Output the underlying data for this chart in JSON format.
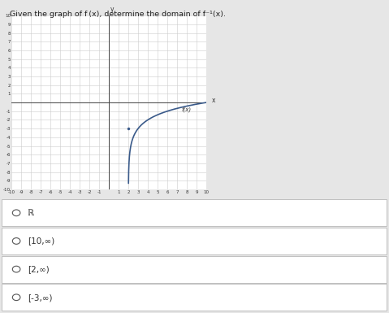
{
  "title_part1": "Given the graph of ",
  "title_fx": "f (x)",
  "title_part2": ", determine the domain of ",
  "title_finv": "f⁻¹(x)",
  "title_part3": ".",
  "x_min": -10,
  "x_max": 10,
  "y_min": -10,
  "y_max": 10,
  "curve_x_start": 2,
  "curve_color": "#3a5a8a",
  "curve_linewidth": 1.2,
  "fx_label": "f(x)",
  "options": [
    "ℝ",
    "[10,∞)",
    "[2,∞)",
    "[-3,∞)"
  ],
  "bg_color": "#e6e6e6",
  "plot_bg": "#ffffff",
  "grid_color": "#cccccc",
  "axis_color": "#444444",
  "option_bg": "#ffffff",
  "option_border": "#c0c0c0",
  "radio_color": "#555555",
  "option_text_color": "#333333",
  "tick_fontsize": 4.0,
  "label_fontsize": 5.5
}
